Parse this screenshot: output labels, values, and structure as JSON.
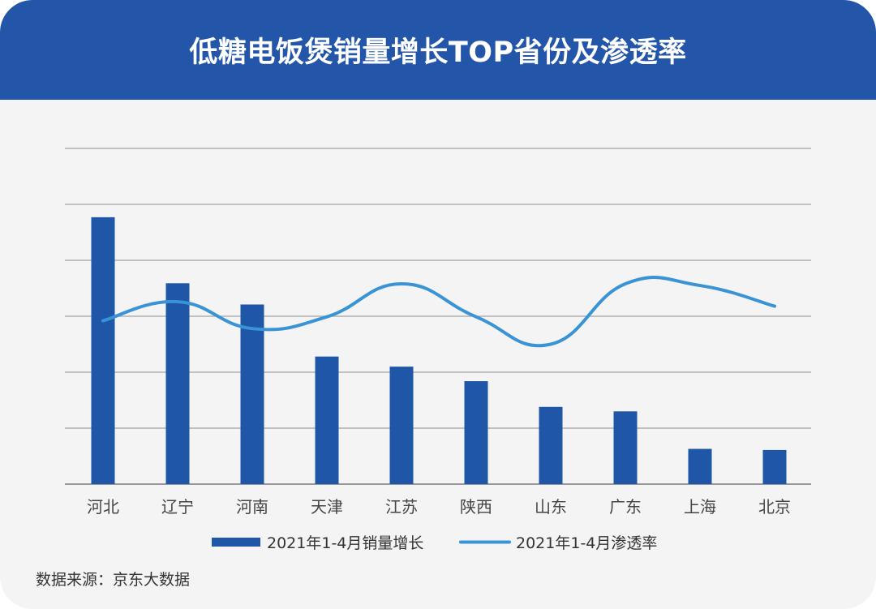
{
  "title": "低糖电饭煲销量增长TOP省份及渗透率",
  "source": "数据来源：京东大数据",
  "colors": {
    "header": "#2356a8",
    "bar": "#1f56a8",
    "line": "#3a93d5",
    "grid": "#b0b0b0",
    "axis": "#7a7a7a"
  },
  "chart_data": {
    "type": "bar",
    "categories": [
      "河北",
      "辽宁",
      "河南",
      "天津",
      "江苏",
      "陕西",
      "山东",
      "广东",
      "上海",
      "北京"
    ],
    "ylim": [
      0,
      6
    ],
    "grid": true,
    "legend_position": "bottom",
    "series": [
      {
        "name": "2021年1-4月销量增长",
        "type": "bar",
        "values": [
          4.77,
          3.59,
          3.21,
          2.28,
          2.1,
          1.84,
          1.38,
          1.3,
          0.63,
          0.61
        ]
      },
      {
        "name": "2021年1-4月渗透率",
        "type": "line",
        "values": [
          2.92,
          3.26,
          2.78,
          2.99,
          3.58,
          2.99,
          2.5,
          3.58,
          3.55,
          3.18
        ]
      }
    ]
  }
}
